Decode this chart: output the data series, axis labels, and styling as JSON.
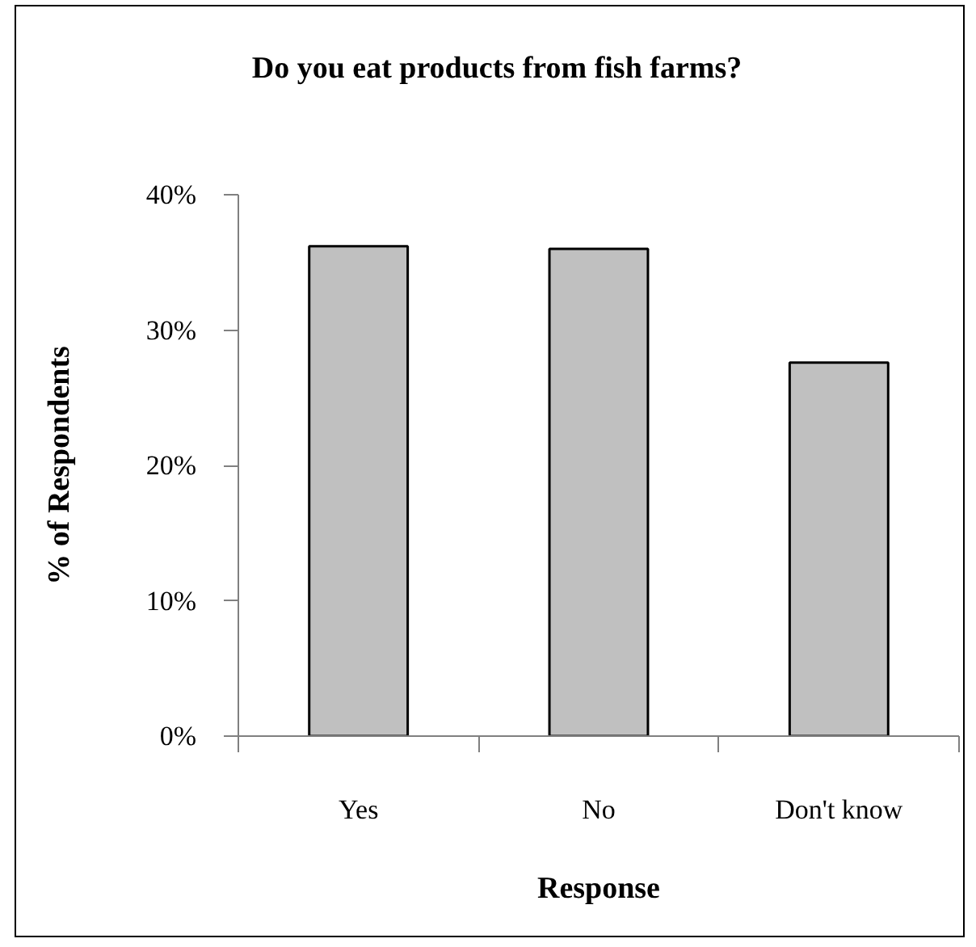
{
  "chart_data": {
    "type": "bar",
    "title": "Do you eat products from fish farms?",
    "xlabel": "Response",
    "ylabel": "% of Respondents",
    "categories": [
      "Yes",
      "No",
      "Don't know"
    ],
    "values": [
      36.2,
      36.0,
      27.6
    ],
    "color": "#c0c0c0",
    "ylim": [
      0,
      40
    ],
    "yticks": [
      {
        "value": 0,
        "label": "0%"
      },
      {
        "value": 10,
        "label": "10%"
      },
      {
        "value": 20,
        "label": "20%"
      },
      {
        "value": 30,
        "label": "30%"
      },
      {
        "value": 40,
        "label": "40%"
      }
    ],
    "grid": false
  }
}
